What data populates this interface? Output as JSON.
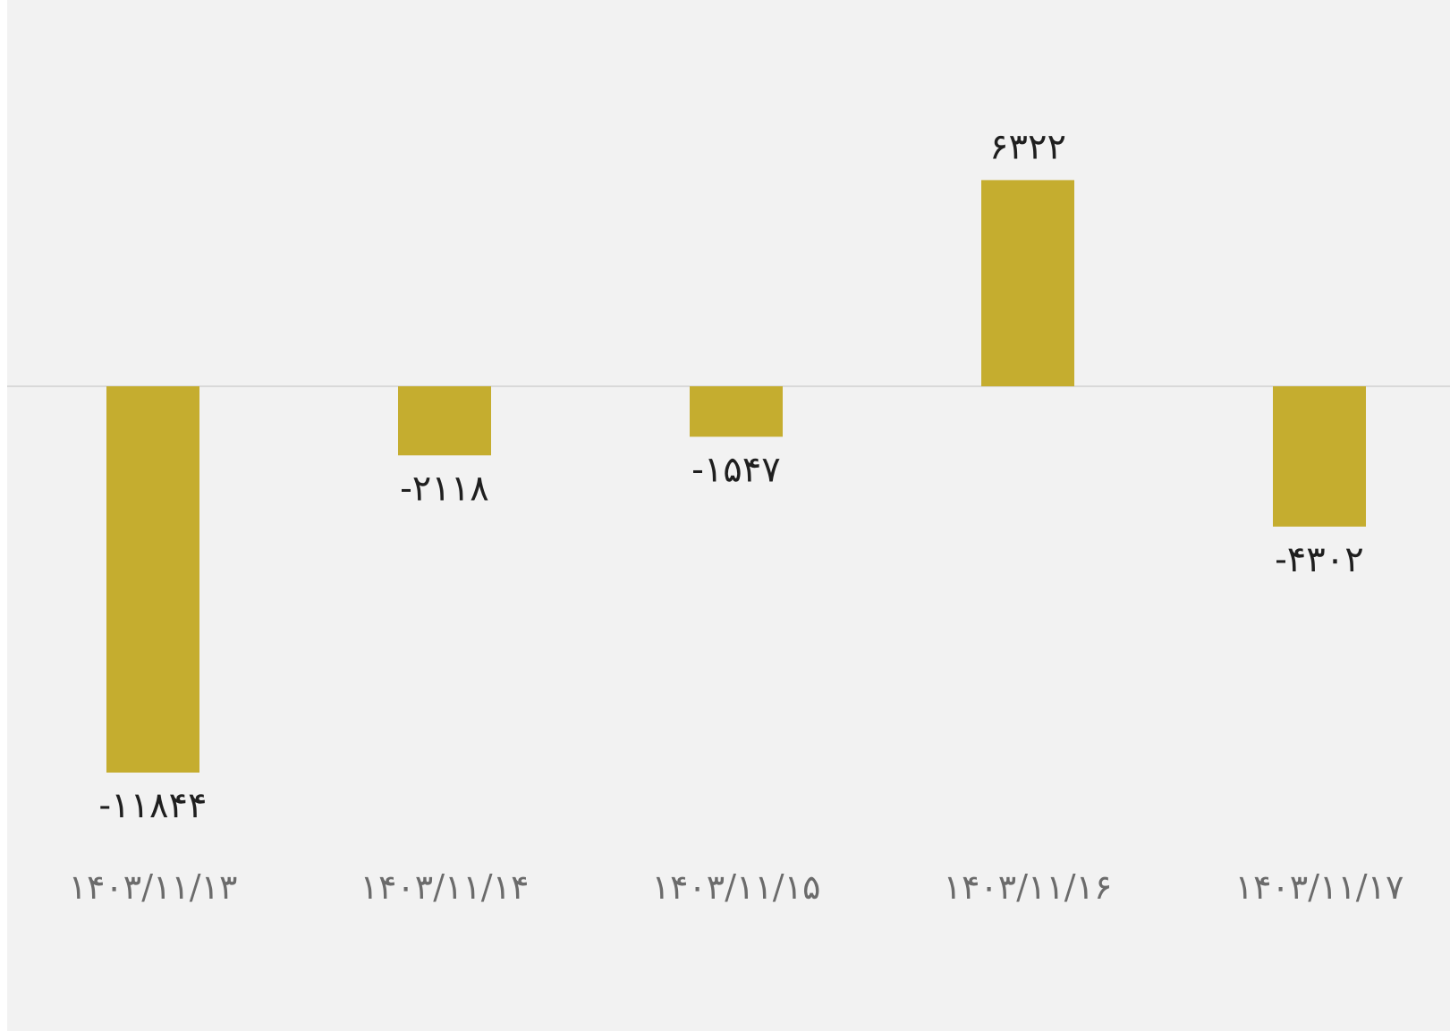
{
  "chart_data": {
    "type": "bar",
    "categories": [
      "۱۴۰۳/۱۱/۱۳",
      "۱۴۰۳/۱۱/۱۴",
      "۱۴۰۳/۱۱/۱۵",
      "۱۴۰۳/۱۱/۱۶",
      "۱۴۰۳/۱۱/۱۷"
    ],
    "values": [
      -11844,
      -2118,
      -1547,
      6322,
      -4302
    ],
    "value_labels": [
      "-۱۱۸۴۴",
      "-۲۱۱۸",
      "-۱۵۴۷",
      "۶۳۲۲",
      "-۴۳۰۲"
    ],
    "title": "",
    "xlabel": "",
    "ylabel": "",
    "grid": false,
    "legend": "none",
    "colors": {
      "bar": "#c5ad2f",
      "background": "#f2f2f2",
      "baseline": "#d9d9d9"
    }
  }
}
